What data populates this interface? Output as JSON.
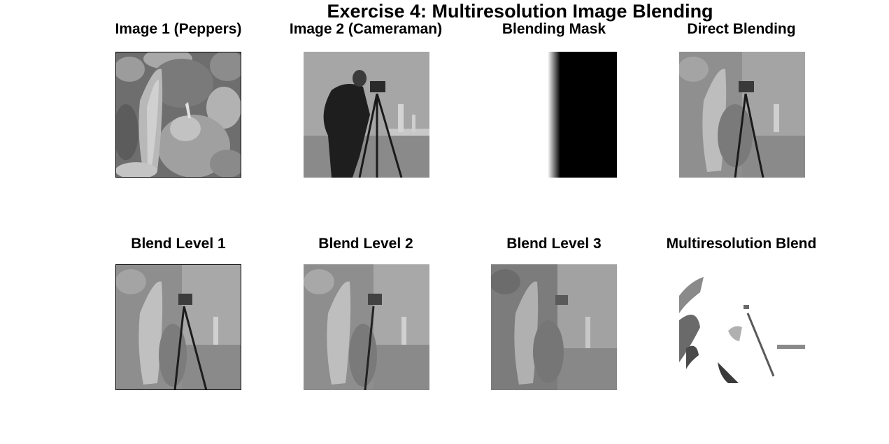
{
  "figure": {
    "title": "Exercise 4: Multiresolution Image Blending"
  },
  "panels": [
    {
      "title": "Image 1 (Peppers)",
      "icon": "peppers-image-icon"
    },
    {
      "title": "Image 2 (Cameraman)",
      "icon": "cameraman-image-icon"
    },
    {
      "title": "Blending Mask",
      "icon": "mask-gradient-icon"
    },
    {
      "title": "Direct Blending",
      "icon": "direct-blend-image-icon"
    },
    {
      "title": "Blend Level 1",
      "icon": "blend-level-1-image-icon"
    },
    {
      "title": "Blend Level 2",
      "icon": "blend-level-2-image-icon"
    },
    {
      "title": "Blend Level 3",
      "icon": "blend-level-3-image-icon"
    },
    {
      "title": "Multiresolution Blend",
      "icon": "multiresolution-blend-image-icon"
    }
  ],
  "colors": {
    "background": "#ffffff",
    "text": "#000000",
    "mask_dark": "#000000",
    "gray_light": "#b4b4b4",
    "gray_mid": "#8a8a8a",
    "gray_dark": "#3a3a3a"
  }
}
